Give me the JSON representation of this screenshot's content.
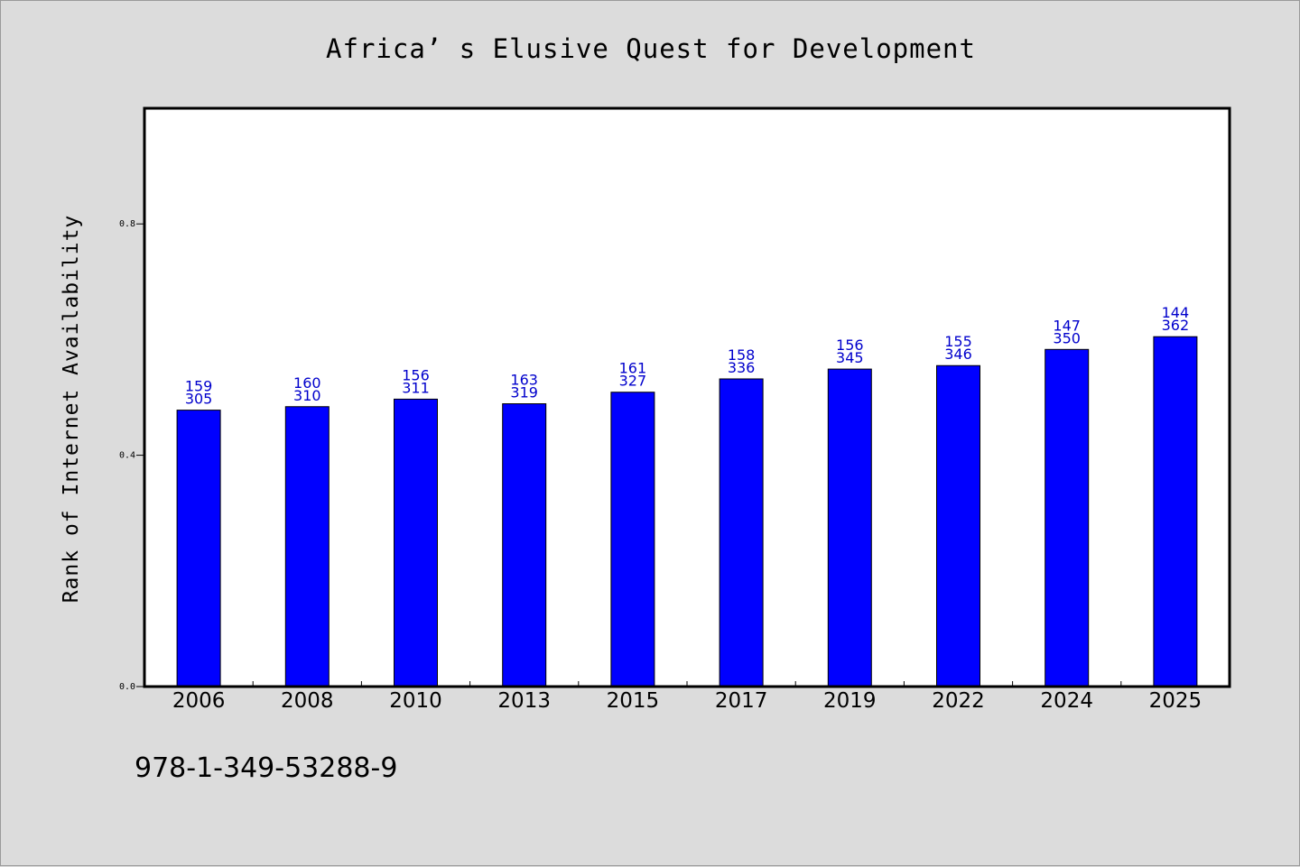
{
  "chart_data": {
    "type": "bar",
    "title": "Africa’ s Elusive Quest for Development",
    "xlabel": "",
    "ylabel": "Rank of Internet Availability",
    "categories": [
      "2006",
      "2008",
      "2010",
      "2013",
      "2015",
      "2017",
      "2019",
      "2022",
      "2024",
      "2025"
    ],
    "values": [
      0.478,
      0.484,
      0.497,
      0.489,
      0.509,
      0.532,
      0.549,
      0.555,
      0.583,
      0.605
    ],
    "annotations_top": [
      "159",
      "160",
      "156",
      "163",
      "161",
      "158",
      "156",
      "155",
      "147",
      "144"
    ],
    "annotations_bottom": [
      "305",
      "310",
      "311",
      "319",
      "327",
      "336",
      "345",
      "346",
      "350",
      "362"
    ],
    "ylim": [
      0,
      1.0
    ],
    "yticks": [
      0.0,
      0.4,
      0.8
    ],
    "ytick_labels": [
      "0.0",
      "0.4",
      "0.8"
    ],
    "grid": false,
    "bar_color": "#0000ff",
    "annotation_color": "#0000cc"
  },
  "footer": {
    "isbn": "978-1-349-53288-9"
  },
  "colors": {
    "page_background": "#dcdcdc",
    "plot_background": "#ffffff"
  }
}
